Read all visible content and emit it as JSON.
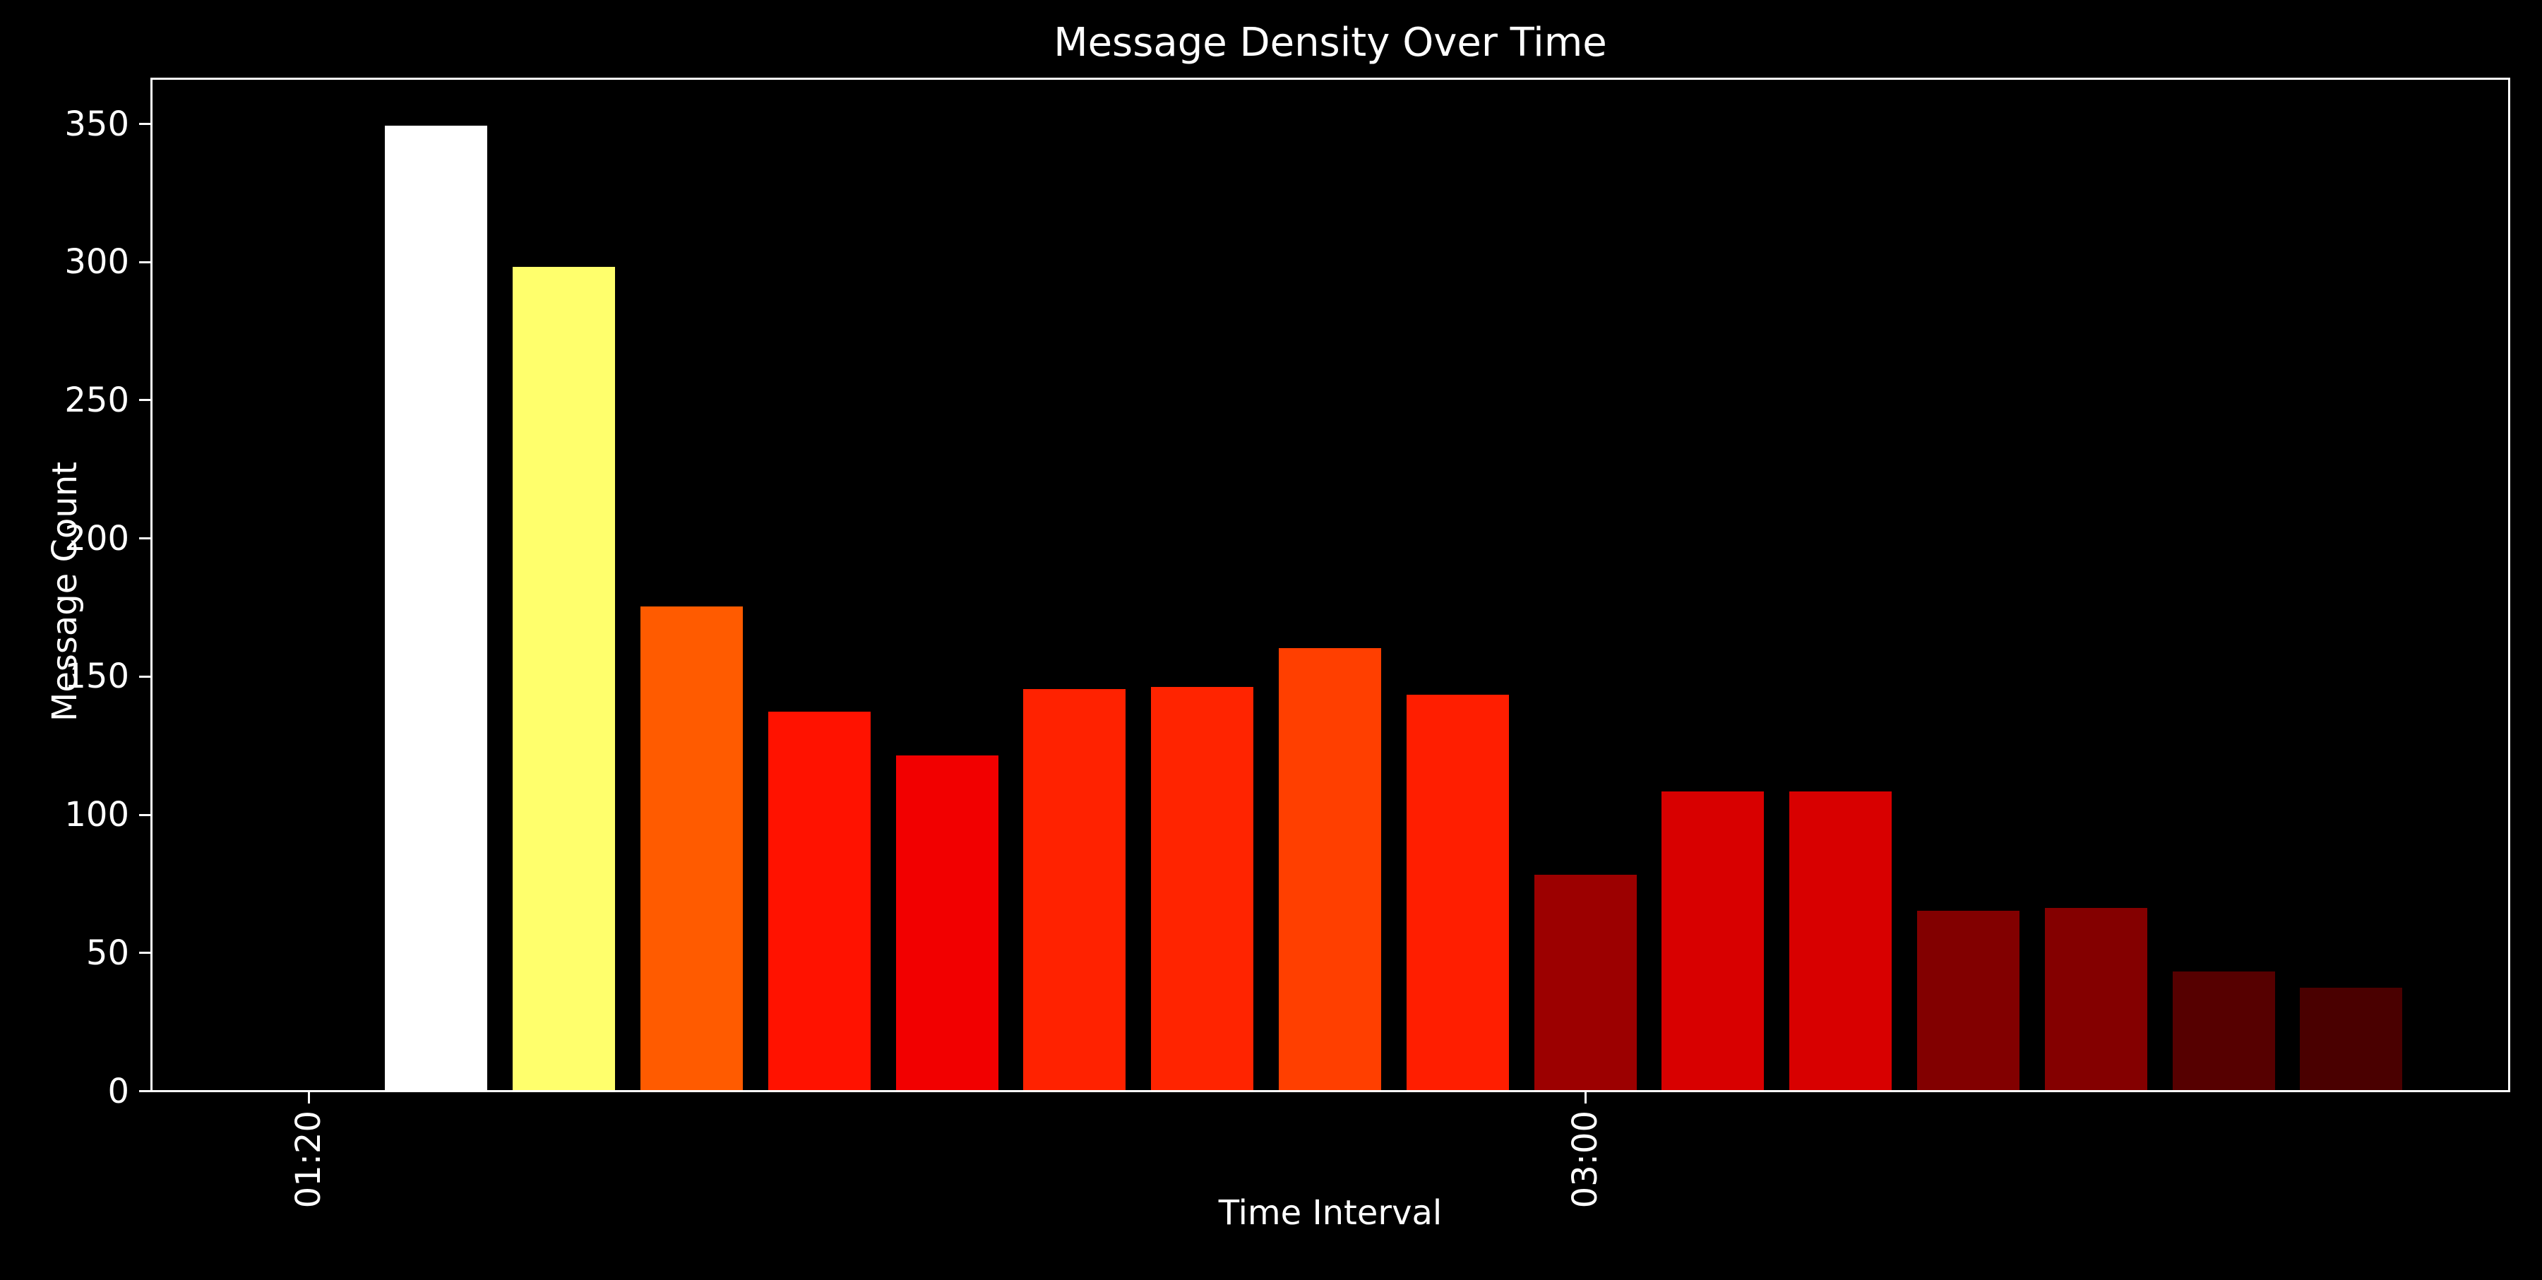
{
  "figure": {
    "background_color": "#000000",
    "foreground_color": "#ffffff"
  },
  "chart_data": {
    "type": "bar",
    "title": "Message Density Over Time",
    "xlabel": "Time Interval",
    "ylabel": "Message Count",
    "grid": false,
    "legend": false,
    "colormap": "hot",
    "ylim": [
      0,
      367
    ],
    "y_ticks": [
      0,
      50,
      100,
      150,
      200,
      250,
      300,
      350
    ],
    "n_slots": 17,
    "x_ticks_visible": [
      {
        "slot": 0,
        "label": "01:20"
      },
      {
        "slot": 10,
        "label": "03:00"
      }
    ],
    "x_tick_rotation_deg": 90,
    "categories": [
      "01:20",
      "",
      "",
      "",
      "",
      "",
      "",
      "",
      "",
      "",
      "03:00",
      "",
      "",
      "",
      "",
      "",
      ""
    ],
    "values": [
      0,
      349,
      298,
      175,
      137,
      121,
      145,
      146,
      160,
      143,
      78,
      108,
      108,
      65,
      66,
      43,
      37
    ],
    "bar_colors": [
      "#000000",
      "#ffffff",
      "#ffff6c",
      "#ff5b00",
      "#ff1200",
      "#f20000",
      "#ff2200",
      "#ff2400",
      "#ff3f00",
      "#ff1e00",
      "#9c0000",
      "#d80000",
      "#d80000",
      "#820000",
      "#840000",
      "#560000",
      "#4a0000"
    ]
  }
}
